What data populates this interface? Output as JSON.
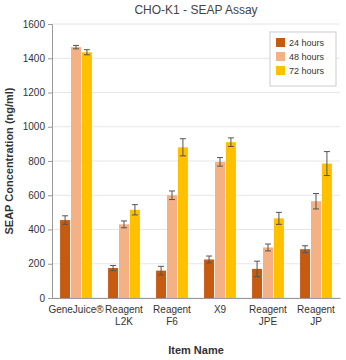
{
  "chart_data": {
    "type": "bar",
    "title": "CHO-K1 - SEAP Assay",
    "x_label": "Item Name",
    "y_label": "SEAP Concentration (ng/ml)",
    "categories": [
      "GeneJuice®",
      "Reagent L2K",
      "Reagent F6",
      "X9",
      "Reagent JPE",
      "Reagent JP"
    ],
    "series": [
      {
        "name": "24 hours",
        "color": "#c55a11",
        "values": [
          455,
          175,
          160,
          225,
          170,
          285
        ],
        "errors": [
          25,
          15,
          25,
          20,
          45,
          20
        ]
      },
      {
        "name": "48 hours",
        "color": "#f4b183",
        "values": [
          1465,
          430,
          600,
          795,
          295,
          565
        ],
        "errors": [
          10,
          20,
          25,
          25,
          20,
          45
        ]
      },
      {
        "name": "72 hours",
        "color": "#ffc000",
        "values": [
          1435,
          515,
          880,
          910,
          465,
          785
        ],
        "errors": [
          15,
          30,
          50,
          25,
          35,
          70
        ]
      }
    ],
    "ylim": [
      0,
      1600
    ],
    "yticks": [
      0,
      200,
      400,
      600,
      800,
      1000,
      1200,
      1400,
      1600
    ],
    "grid": true,
    "legend": "upper right"
  }
}
